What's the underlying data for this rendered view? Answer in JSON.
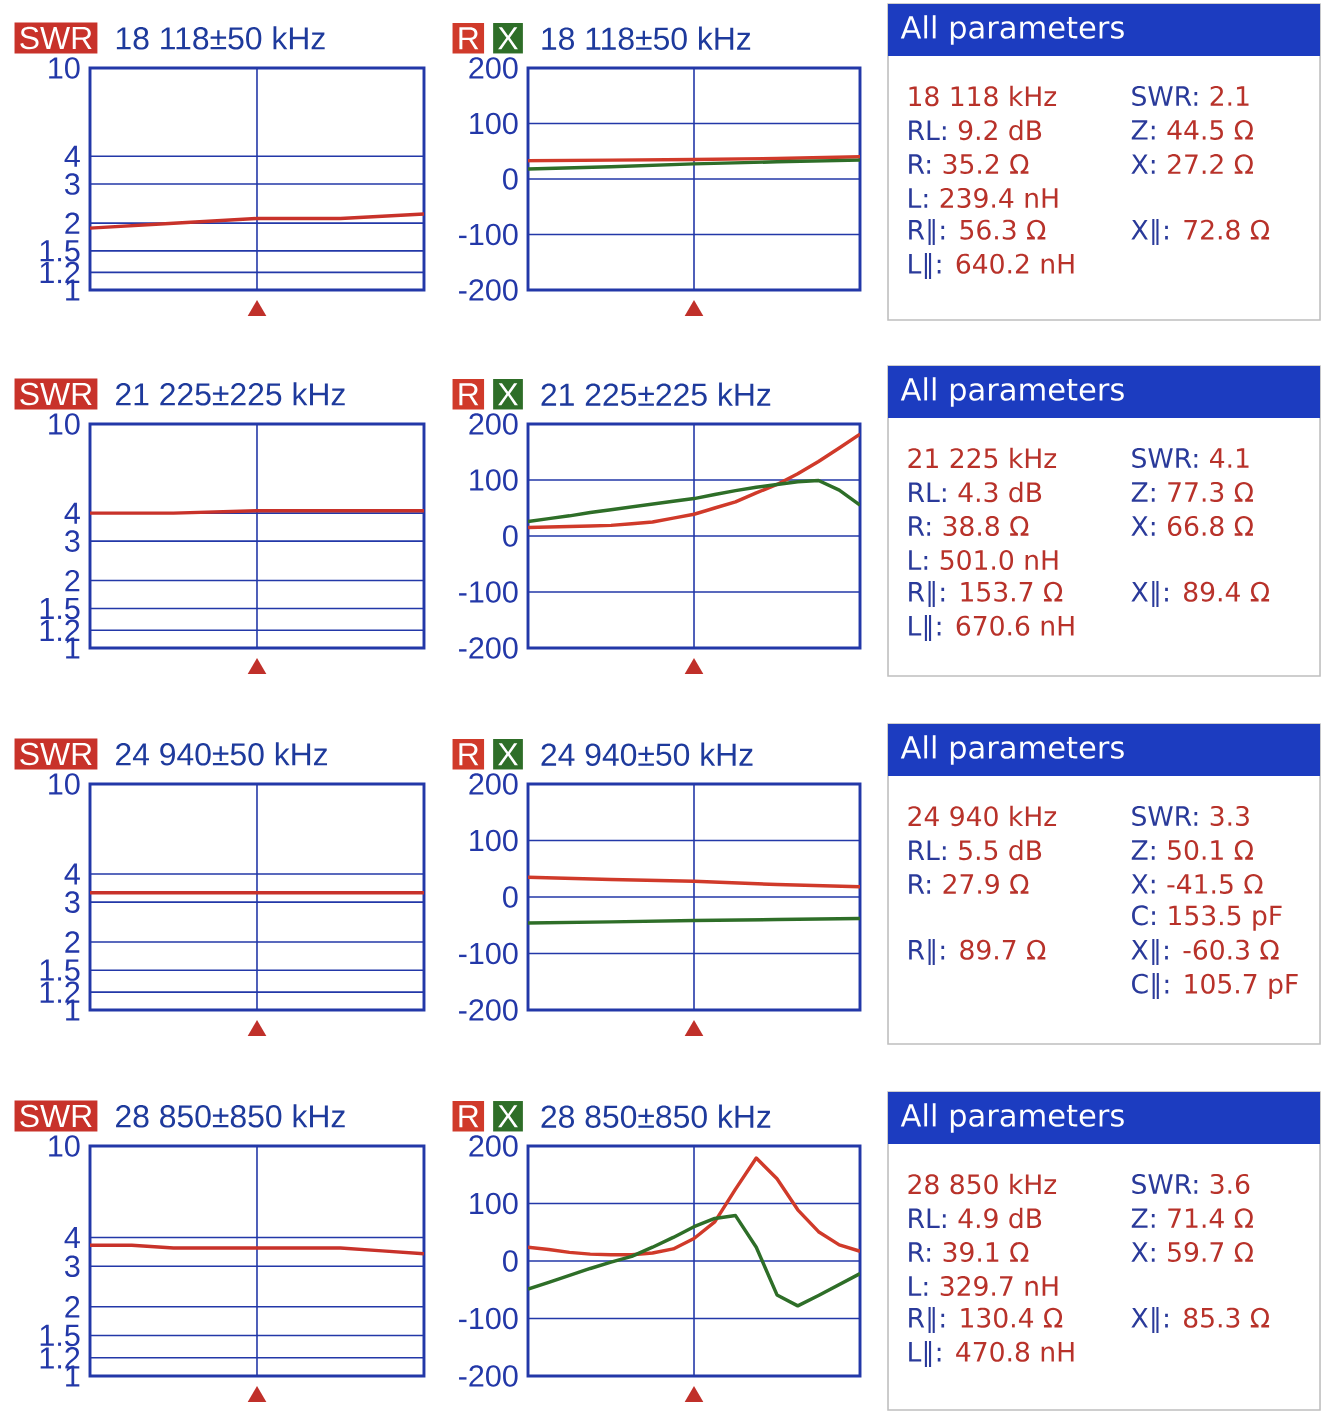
{
  "chart_data": [
    {
      "type": "line",
      "title": "18 118±50 kHz",
      "legend": "top left",
      "grid": true,
      "tick_labels": "y",
      "log": true,
      "ylim": [
        1,
        10
      ],
      "yticks": [
        1,
        1.2,
        1.5,
        2,
        3,
        4,
        10
      ],
      "categories": [
        null,
        null,
        null,
        null,
        null
      ],
      "series": [
        {
          "name": "SWR",
          "color": "#c8322a",
          "values": [
            1.9,
            2,
            2.1,
            2.1,
            2.2
          ]
        }
      ]
    },
    {
      "type": "line",
      "title": "18 118±50 kHz",
      "legend": "top left",
      "grid": true,
      "tick_labels": "y",
      "ylim": [
        -200,
        200
      ],
      "yticks": [
        -200,
        -100,
        0,
        100,
        200
      ],
      "categories": [
        null,
        null,
        null,
        null,
        null
      ],
      "series": [
        {
          "name": "R",
          "color": "#d03a2a",
          "values": [
            33,
            34,
            35.2,
            37,
            40
          ]
        },
        {
          "name": "X",
          "color": "#2e6e28",
          "values": [
            18,
            22,
            27.2,
            31,
            34
          ]
        }
      ]
    },
    {
      "type": "other",
      "title": "All parameters",
      "annotations": [
        "18 118 kHz",
        "SWR: 2.1",
        "RL: 9.2 dB",
        "Z: 44.5 Ω",
        "R: 35.2 Ω",
        "X: 27.2 Ω",
        "L: 239.4 nH",
        null,
        "R∥: 56.3 Ω",
        "X∥: 72.8 Ω",
        "L∥: 640.2 nH"
      ]
    },
    {
      "type": "line",
      "title": "21 225±225 kHz",
      "legend": "top left",
      "grid": true,
      "tick_labels": "y",
      "log": true,
      "ylim": [
        1,
        10
      ],
      "yticks": [
        1,
        1.2,
        1.5,
        2,
        3,
        4,
        10
      ],
      "categories": [
        null,
        null,
        null,
        null,
        null
      ],
      "series": [
        {
          "name": "SWR",
          "color": "#c8322a",
          "values": [
            4,
            4,
            4.1,
            4.1,
            4.1
          ]
        }
      ]
    },
    {
      "type": "line",
      "title": "21 225±225 kHz",
      "legend": "top left",
      "grid": true,
      "tick_labels": "y",
      "ylim": [
        -200,
        200
      ],
      "yticks": [
        -200,
        -100,
        0,
        100,
        200
      ],
      "categories": [
        null,
        null,
        null,
        null,
        null,
        null,
        null,
        null,
        null,
        null,
        null,
        null,
        null,
        null,
        null,
        null,
        null
      ],
      "series": [
        {
          "name": "R",
          "color": "#d03a2a",
          "values": [
            15,
            16,
            17,
            18,
            19,
            22,
            25,
            32,
            38.8,
            50,
            61,
            77,
            92,
            111,
            133,
            157,
            182
          ]
        },
        {
          "name": "X",
          "color": "#2e6e28",
          "values": [
            26,
            31,
            36,
            42,
            47,
            52,
            57,
            62,
            66.8,
            74,
            81,
            87,
            92,
            97,
            99,
            82,
            55
          ]
        }
      ]
    },
    {
      "type": "other",
      "title": "All parameters",
      "annotations": [
        "21 225 kHz",
        "SWR: 4.1",
        "RL: 4.3 dB",
        "Z: 77.3 Ω",
        "R: 38.8 Ω",
        "X: 66.8 Ω",
        "L: 501.0 nH",
        null,
        "R∥: 153.7 Ω",
        "X∥: 89.4 Ω",
        "L∥: 670.6 nH"
      ]
    },
    {
      "type": "line",
      "title": "24 940±50 kHz",
      "legend": "top left",
      "grid": true,
      "tick_labels": "y",
      "log": true,
      "ylim": [
        1,
        10
      ],
      "yticks": [
        1,
        1.2,
        1.5,
        2,
        3,
        4,
        10
      ],
      "categories": [
        null,
        null,
        null,
        null,
        null
      ],
      "series": [
        {
          "name": "SWR",
          "color": "#c8322a",
          "values": [
            3.3,
            3.3,
            3.3,
            3.3,
            3.3
          ]
        }
      ]
    },
    {
      "type": "line",
      "title": "24 940±50 kHz",
      "legend": "top left",
      "grid": true,
      "tick_labels": "y",
      "ylim": [
        -200,
        200
      ],
      "yticks": [
        -200,
        -100,
        0,
        100,
        200
      ],
      "categories": [
        null,
        null,
        null,
        null,
        null
      ],
      "series": [
        {
          "name": "R",
          "color": "#d03a2a",
          "values": [
            35,
            31,
            27.9,
            22,
            18
          ]
        },
        {
          "name": "X",
          "color": "#2e6e28",
          "values": [
            -46,
            -44,
            -41.5,
            -40,
            -38
          ]
        }
      ]
    },
    {
      "type": "other",
      "title": "All parameters",
      "annotations": [
        "24 940 kHz",
        "SWR: 3.3",
        "RL: 5.5 dB",
        "Z: 50.1 Ω",
        "R: 27.9 Ω",
        "X: -41.5 Ω",
        null,
        "C: 153.5 pF",
        "R∥: 89.7 Ω",
        "X∥: -60.3 Ω",
        null,
        "C∥: 105.7 pF"
      ]
    },
    {
      "type": "line",
      "title": "28 850±850 kHz",
      "legend": "top left",
      "grid": true,
      "tick_labels": "y",
      "log": true,
      "ylim": [
        1,
        10
      ],
      "yticks": [
        1,
        1.2,
        1.5,
        2,
        3,
        4,
        10
      ],
      "categories": [
        null,
        null,
        null,
        null,
        null,
        null,
        null,
        null,
        null
      ],
      "series": [
        {
          "name": "SWR",
          "color": "#c8322a",
          "values": [
            3.7,
            3.7,
            3.6,
            3.6,
            3.6,
            3.6,
            3.6,
            3.5,
            3.4
          ]
        }
      ]
    },
    {
      "type": "line",
      "title": "28 850±850 kHz",
      "legend": "top left",
      "grid": true,
      "tick_labels": "y",
      "ylim": [
        -200,
        200
      ],
      "yticks": [
        -200,
        -100,
        0,
        100,
        200
      ],
      "categories": [
        null,
        null,
        null,
        null,
        null,
        null,
        null,
        null,
        null,
        null,
        null,
        null,
        null,
        null,
        null,
        null,
        null
      ],
      "series": [
        {
          "name": "R",
          "color": "#d03a2a",
          "values": [
            24,
            20,
            15,
            12,
            11,
            11,
            14,
            21,
            39.1,
            68,
            125,
            179,
            143,
            89,
            51,
            28,
            17
          ]
        },
        {
          "name": "X",
          "color": "#2e6e28",
          "values": [
            -49,
            -37,
            -25,
            -13,
            -2,
            8,
            24,
            41,
            59.7,
            74,
            79,
            24,
            -59,
            -78,
            -60,
            -41,
            -22
          ]
        }
      ]
    },
    {
      "type": "other",
      "title": "All parameters",
      "annotations": [
        "28 850 kHz",
        "SWR: 3.6",
        "RL: 4.9 dB",
        "Z: 71.4 Ω",
        "R: 39.1 Ω",
        "X: 59.7 Ω",
        "L: 329.7 nH",
        null,
        "R∥: 130.4 Ω",
        "X∥: 85.3 Ω",
        "L∥: 470.8 nH"
      ]
    }
  ]
}
